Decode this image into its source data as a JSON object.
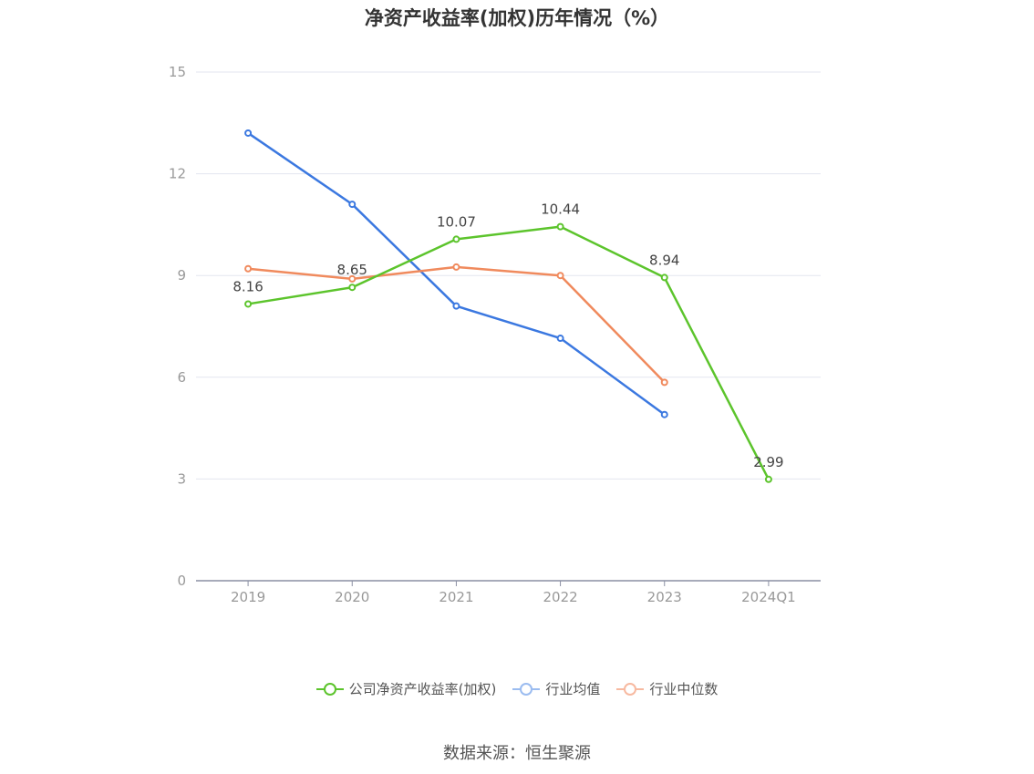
{
  "chart_data": {
    "type": "line",
    "title": "净资产收益率(加权)历年情况（%）",
    "categories": [
      "2019",
      "2020",
      "2021",
      "2022",
      "2023",
      "2024Q1"
    ],
    "y_ticks": [
      "0",
      "3",
      "6",
      "9",
      "12",
      "15"
    ],
    "ylim": [
      0,
      15
    ],
    "grid": true,
    "legend_position": "bottom",
    "series": [
      {
        "name": "公司净资产收益率(加权)",
        "color": "#5cc42c",
        "values": [
          8.16,
          8.65,
          10.07,
          10.44,
          8.94,
          2.99
        ],
        "labels": [
          "8.16",
          "8.65",
          "10.07",
          "10.44",
          "8.94",
          "2.99"
        ]
      },
      {
        "name": "行业均值",
        "color": "#3b78e0",
        "values": [
          13.2,
          11.1,
          8.1,
          7.15,
          4.9,
          null
        ]
      },
      {
        "name": "行业中位数",
        "color": "#f08a5d",
        "values": [
          9.2,
          8.9,
          9.25,
          9.0,
          5.85,
          null
        ]
      }
    ],
    "source": "数据来源：恒生聚源"
  }
}
